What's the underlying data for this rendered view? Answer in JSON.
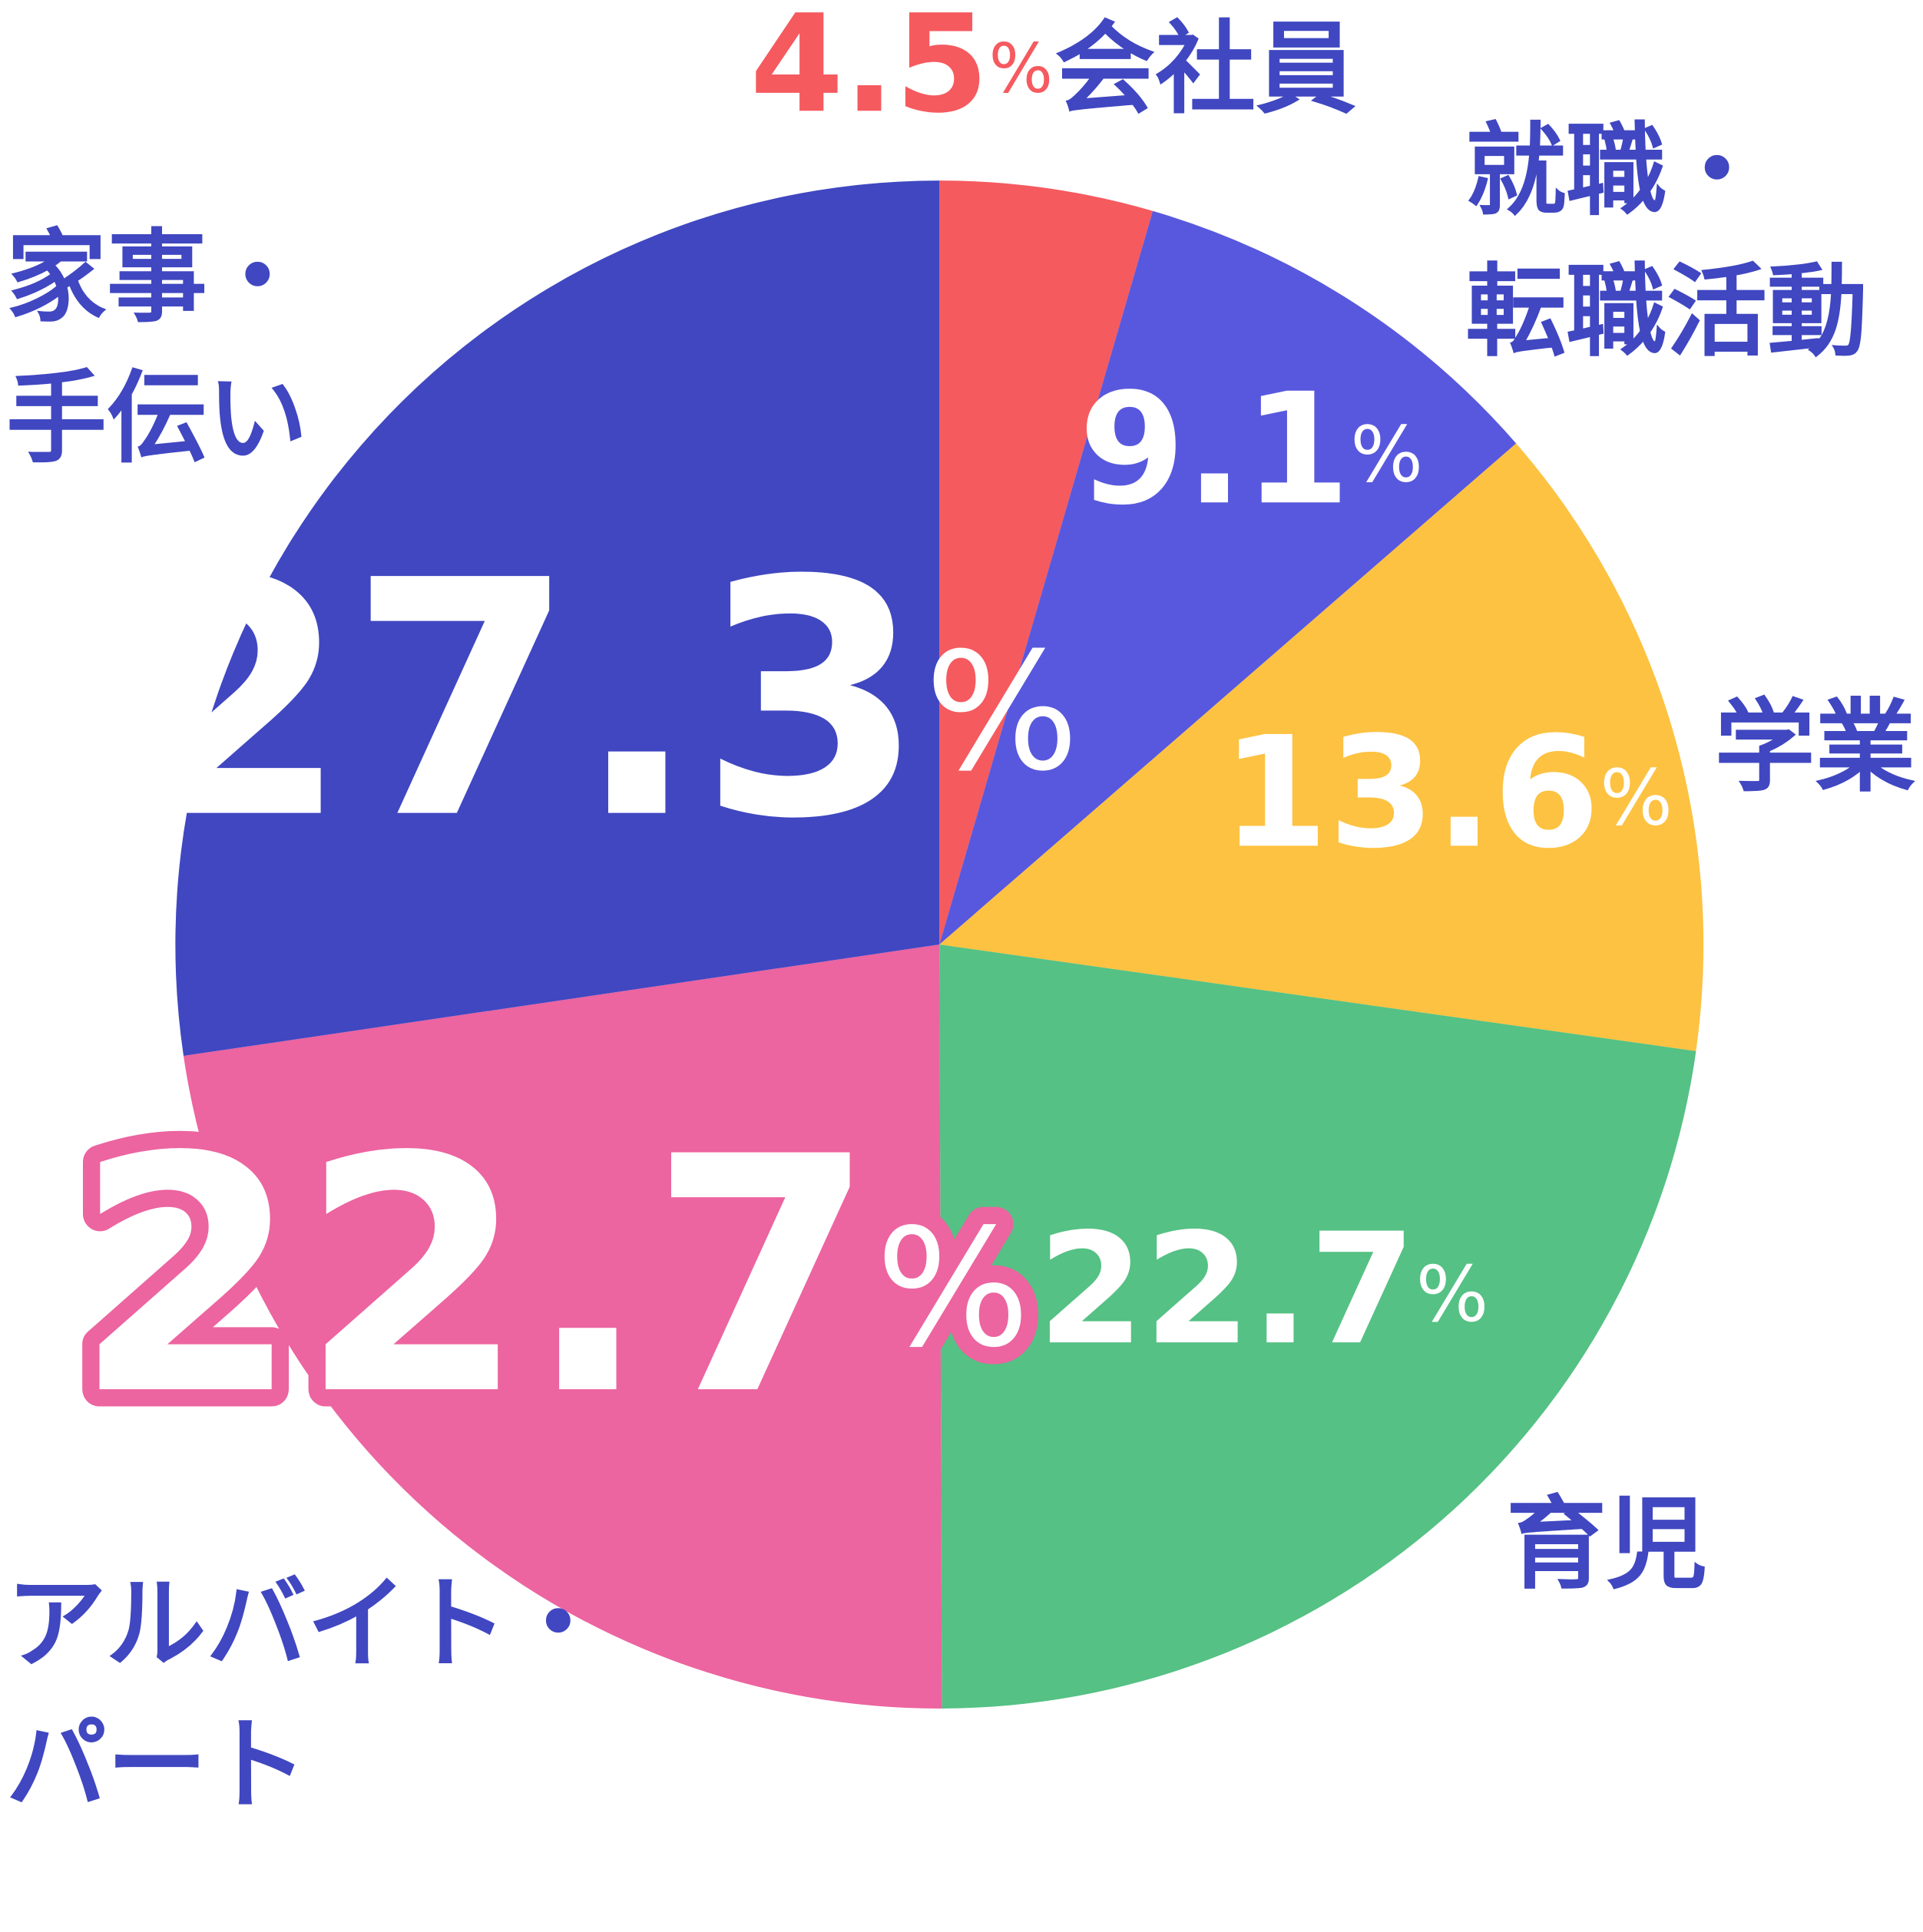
{
  "chart_data": {
    "type": "pie",
    "categories": [
      [
        "会社員"
      ],
      [
        "就職・",
        "転職活動"
      ],
      [
        "学業"
      ],
      [
        "育児"
      ],
      [
        "アルバイト・",
        "パート"
      ],
      [
        "家事・",
        "手伝い"
      ]
    ],
    "values": [
      4.5,
      9.1,
      13.6,
      22.7,
      22.7,
      27.3
    ],
    "value_suffix": "%",
    "colors": [
      "#f55a5f",
      "#5858de",
      "#fdc241",
      "#55c184",
      "#ec64a0",
      "#4047c1"
    ],
    "label_color": "#4047c1"
  }
}
